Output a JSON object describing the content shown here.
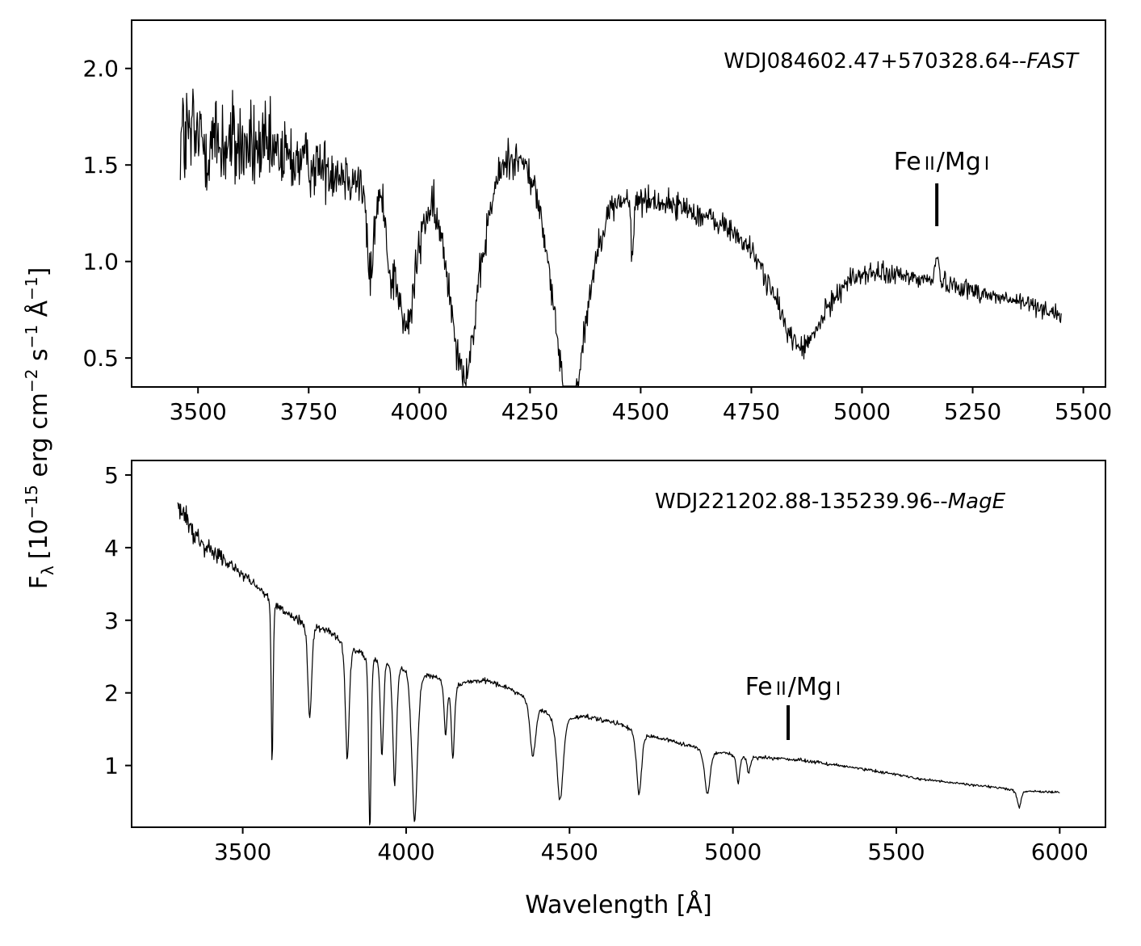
{
  "figure": {
    "ylabel": "F",
    "ylabel_sub": "λ",
    "ylabel_units": "[10",
    "ylabel_exp1": "−15",
    "ylabel_mid1": " erg cm",
    "ylabel_exp2": "−2",
    "ylabel_mid2": " s",
    "ylabel_exp3": "−1",
    "ylabel_mid3": " Å",
    "ylabel_exp4": "−1",
    "ylabel_end": "]",
    "xlabel": "Wavelength [Å]"
  },
  "chart_data": [
    {
      "type": "line",
      "panel": "top",
      "annotation_name": "WDJ084602.47+570328.64--",
      "annotation_instrument": "FAST",
      "line_marker_label": {
        "fe": "Fe",
        "fe_ion": "II",
        "slash": "/",
        "mg": "Mg",
        "mg_ion": "I"
      },
      "line_marker_wavelength": 5169,
      "xlim": [
        3350,
        5550
      ],
      "ylim": [
        0.35,
        2.25
      ],
      "xticks": [
        3500,
        3750,
        4000,
        4250,
        4500,
        4750,
        5000,
        5250,
        5500
      ],
      "xtick_labels": [
        "3500",
        "3750",
        "4000",
        "4250",
        "4500",
        "4750",
        "5000",
        "5250",
        "5500"
      ],
      "yticks": [
        0.5,
        1.0,
        1.5,
        2.0
      ],
      "ytick_labels": [
        "0.5",
        "1.0",
        "1.5",
        "2.0"
      ],
      "xrange": [
        3460,
        5450
      ],
      "noise_edges": [
        [
          3460,
          0.33
        ],
        [
          3800,
          0.14
        ],
        [
          4500,
          0.07
        ],
        [
          5450,
          0.045
        ]
      ],
      "continuum": [
        [
          3460,
          1.65
        ],
        [
          3600,
          1.6
        ],
        [
          3750,
          1.52
        ],
        [
          3900,
          1.45
        ],
        [
          4000,
          1.5
        ],
        [
          4100,
          1.45
        ],
        [
          4200,
          1.65
        ],
        [
          4300,
          1.6
        ],
        [
          4400,
          1.42
        ],
        [
          4500,
          1.36
        ],
        [
          4600,
          1.3
        ],
        [
          4700,
          1.2
        ],
        [
          4800,
          1.07
        ],
        [
          4900,
          0.98
        ],
        [
          5000,
          0.97
        ],
        [
          5100,
          0.93
        ],
        [
          5200,
          0.89
        ],
        [
          5300,
          0.82
        ],
        [
          5400,
          0.77
        ],
        [
          5450,
          0.72
        ]
      ],
      "absorption_lines": [
        {
          "center": 3889,
          "depth": 0.35,
          "width": 8
        },
        {
          "center": 3935,
          "depth": 0.2,
          "width": 8
        },
        {
          "center": 3970,
          "depth": 0.55,
          "width": 25
        },
        {
          "center": 4102,
          "depth": 0.7,
          "width": 35
        },
        {
          "center": 4340,
          "depth": 0.85,
          "width": 40
        },
        {
          "center": 4481,
          "depth": 0.25,
          "width": 3
        },
        {
          "center": 4861,
          "depth": 0.45,
          "width": 55
        }
      ],
      "emission_lines": [
        {
          "center": 5169,
          "height": 0.12,
          "width": 5
        }
      ]
    },
    {
      "type": "line",
      "panel": "bottom",
      "annotation_name": "WDJ221202.88-135239.96--",
      "annotation_instrument": "MagE",
      "line_marker_label": {
        "fe": "Fe",
        "fe_ion": "II",
        "slash": "/",
        "mg": "Mg",
        "mg_ion": "I"
      },
      "line_marker_wavelength": 5169,
      "xlim": [
        3160,
        6140
      ],
      "ylim": [
        0.15,
        5.2
      ],
      "xticks": [
        3500,
        4000,
        4500,
        5000,
        5500,
        6000
      ],
      "xtick_labels": [
        "3500",
        "4000",
        "4500",
        "5000",
        "5500",
        "6000"
      ],
      "yticks": [
        1,
        2,
        3,
        4,
        5
      ],
      "ytick_labels": [
        "1",
        "2",
        "3",
        "4",
        "5"
      ],
      "xrange": [
        3300,
        6000
      ],
      "noise_edges": [
        [
          3300,
          0.18
        ],
        [
          3500,
          0.07
        ],
        [
          4000,
          0.04
        ],
        [
          5000,
          0.025
        ],
        [
          6000,
          0.015
        ]
      ],
      "continuum": [
        [
          3300,
          4.6
        ],
        [
          3350,
          4.2
        ],
        [
          3450,
          3.8
        ],
        [
          3550,
          3.45
        ],
        [
          3650,
          3.05
        ],
        [
          3750,
          2.9
        ],
        [
          3850,
          2.62
        ],
        [
          3950,
          2.5
        ],
        [
          4050,
          2.3
        ],
        [
          4150,
          2.15
        ],
        [
          4250,
          2.18
        ],
        [
          4350,
          2.0
        ],
        [
          4450,
          1.7
        ],
        [
          4550,
          1.68
        ],
        [
          4650,
          1.58
        ],
        [
          4750,
          1.42
        ],
        [
          4850,
          1.3
        ],
        [
          4950,
          1.2
        ],
        [
          5050,
          1.12
        ],
        [
          5150,
          1.1
        ],
        [
          5250,
          1.05
        ],
        [
          5400,
          0.95
        ],
        [
          5600,
          0.8
        ],
        [
          5800,
          0.7
        ],
        [
          5880,
          0.65
        ],
        [
          6000,
          0.63
        ]
      ],
      "absorption_lines": [
        {
          "center": 3590,
          "depth": 0.7,
          "width": 3
        },
        {
          "center": 3705,
          "depth": 0.45,
          "width": 6
        },
        {
          "center": 3820,
          "depth": 0.6,
          "width": 6
        },
        {
          "center": 3889,
          "depth": 0.95,
          "width": 4
        },
        {
          "center": 3926,
          "depth": 0.55,
          "width": 5
        },
        {
          "center": 3965,
          "depth": 0.7,
          "width": 6
        },
        {
          "center": 4026,
          "depth": 0.9,
          "width": 9
        },
        {
          "center": 4121,
          "depth": 0.35,
          "width": 5
        },
        {
          "center": 4143,
          "depth": 0.5,
          "width": 5
        },
        {
          "center": 4388,
          "depth": 0.4,
          "width": 9
        },
        {
          "center": 4471,
          "depth": 0.7,
          "width": 10
        },
        {
          "center": 4713,
          "depth": 0.6,
          "width": 8
        },
        {
          "center": 4922,
          "depth": 0.5,
          "width": 9
        },
        {
          "center": 5016,
          "depth": 0.35,
          "width": 5
        },
        {
          "center": 5048,
          "depth": 0.2,
          "width": 5
        },
        {
          "center": 5876,
          "depth": 0.35,
          "width": 6
        }
      ],
      "emission_lines": []
    }
  ]
}
